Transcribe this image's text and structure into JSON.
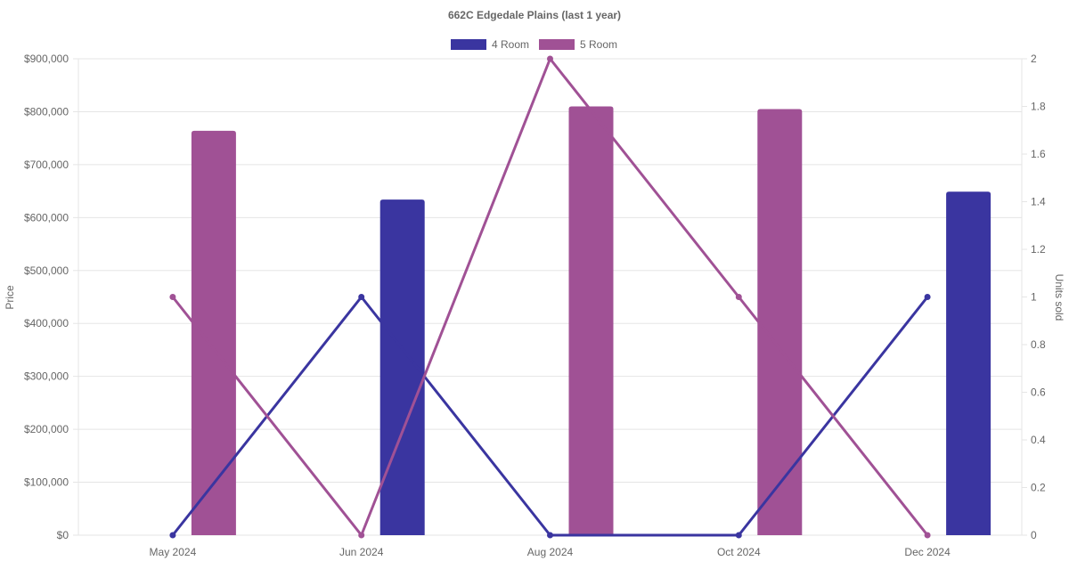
{
  "chart_data": {
    "type": "bar",
    "title": "662C Edgedale  Plains (last 1 year)",
    "categories": [
      "May 2024",
      "Jun 2024",
      "Aug 2024",
      "Oct 2024",
      "Dec 2024"
    ],
    "y_left": {
      "label": "Price",
      "min": 0,
      "max": 900000,
      "step": 100000,
      "prefix": "$"
    },
    "y_right": {
      "label": "Units sold",
      "min": 0,
      "max": 2,
      "step": 0.2
    },
    "legend": {
      "position": "top",
      "entries": [
        "4 Room",
        "5 Room"
      ]
    },
    "grid": true,
    "bar_series": [
      {
        "name": "4 Room",
        "color": "#3a35a0",
        "values": [
          null,
          634000,
          null,
          null,
          649000
        ]
      },
      {
        "name": "5 Room",
        "color": "#a05195",
        "values": [
          764000,
          null,
          810000,
          805000,
          null
        ]
      }
    ],
    "line_series": [
      {
        "name": "4 Room",
        "color": "#3a35a0",
        "values": [
          0,
          1,
          0,
          0,
          1
        ]
      },
      {
        "name": "5 Room",
        "color": "#a05195",
        "values": [
          1,
          0,
          2,
          1,
          0
        ]
      }
    ]
  }
}
